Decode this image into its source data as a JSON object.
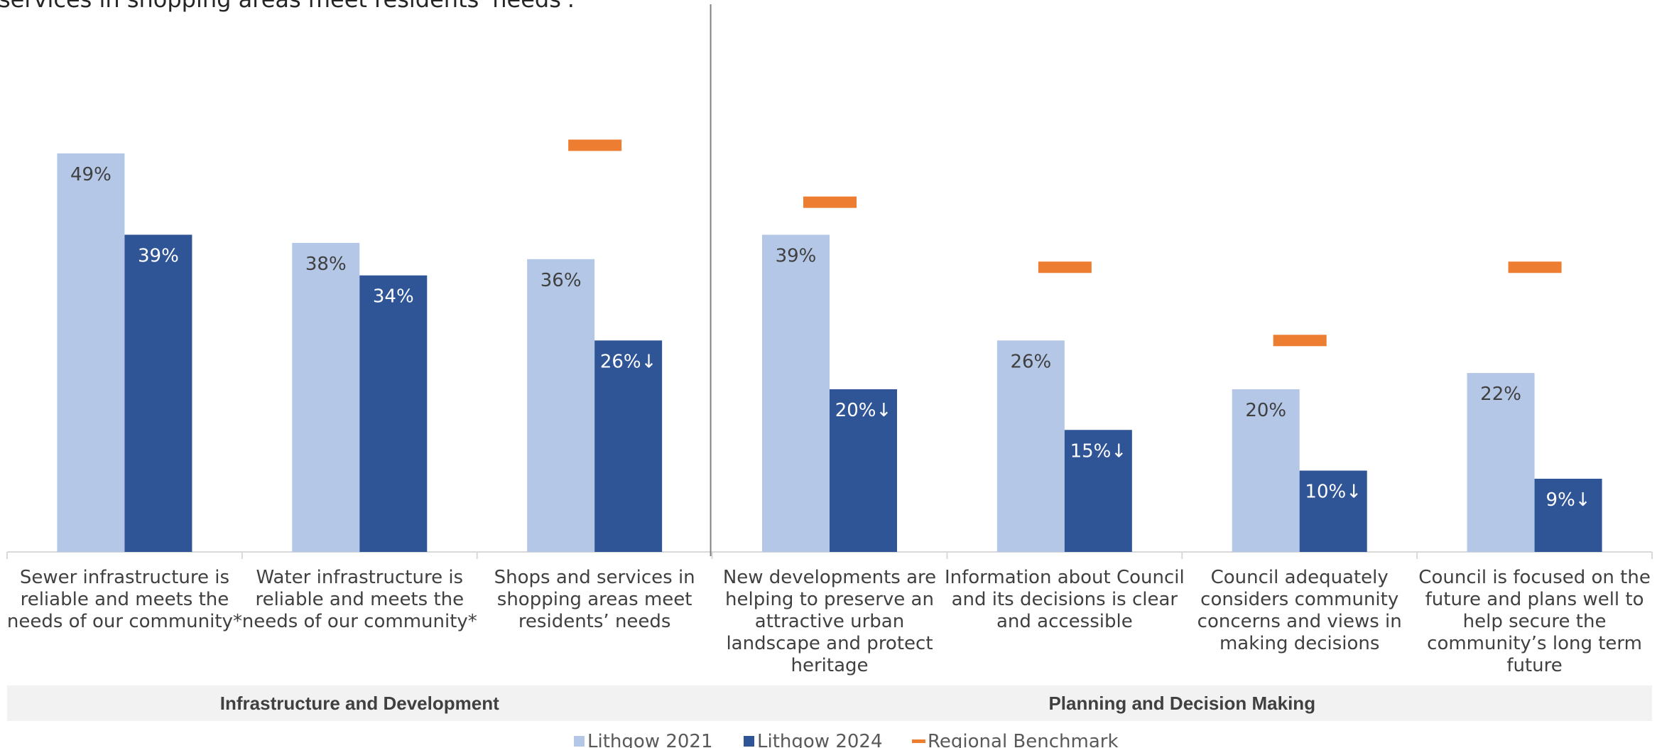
{
  "note": "services in shopping areas meet residents' needs'.",
  "chart_data": {
    "type": "bar",
    "categories": [
      "Sewer infrastructure is reliable and meets the needs of our community*",
      "Water infrastructure is reliable and meets the needs of our community*",
      "Shops and services in shopping areas meet residents’ needs",
      "New developments are helping to preserve an attractive urban landscape and protect heritage",
      "Information about Council and its decisions is clear and accessible",
      "Council adequately considers community concerns and views in making decisions",
      "Council is focused on the future and plans well to help secure the community’s long term future"
    ],
    "category_lines": [
      [
        "Sewer infrastructure is",
        "reliable and meets the",
        "needs of our community*"
      ],
      [
        "Water infrastructure is",
        "reliable and meets the",
        "needs of our community*"
      ],
      [
        "Shops and services in",
        "shopping areas meet",
        "residents’ needs"
      ],
      [
        "New developments are",
        "helping to preserve an",
        "attractive urban",
        "landscape and protect",
        "heritage"
      ],
      [
        "Information about Council",
        "and its decisions is clear",
        "and accessible"
      ],
      [
        "Council adequately",
        "considers community",
        "concerns and views in",
        "making decisions"
      ],
      [
        "Council is focused on the",
        "future and plans well to",
        "help secure the",
        "community’s long term",
        "future"
      ]
    ],
    "groups": [
      {
        "label": "Infrastructure and Development",
        "start": 0,
        "end": 2
      },
      {
        "label": "Planning and Decision Making",
        "start": 3,
        "end": 6
      }
    ],
    "series": [
      {
        "name": "Lithgow 2021",
        "color": "#b4c7e7",
        "values": [
          49,
          38,
          36,
          39,
          26,
          20,
          22
        ],
        "labels": [
          "49%",
          "38%",
          "36%",
          "39%",
          "26%",
          "20%",
          "22%"
        ]
      },
      {
        "name": "Lithgow 2024",
        "color": "#2f5597",
        "values": [
          39,
          34,
          26,
          20,
          15,
          10,
          9
        ],
        "labels": [
          "39%",
          "34%",
          "26%↓",
          "20%↓",
          "15%↓",
          "10%↓",
          "9%↓"
        ]
      }
    ],
    "benchmark": {
      "name": "Regional Benchmark",
      "color": "#ed7d31",
      "values": [
        null,
        null,
        50,
        43,
        35,
        26,
        35
      ]
    },
    "ylim": [
      0,
      60
    ],
    "legend_position": "bottom"
  }
}
